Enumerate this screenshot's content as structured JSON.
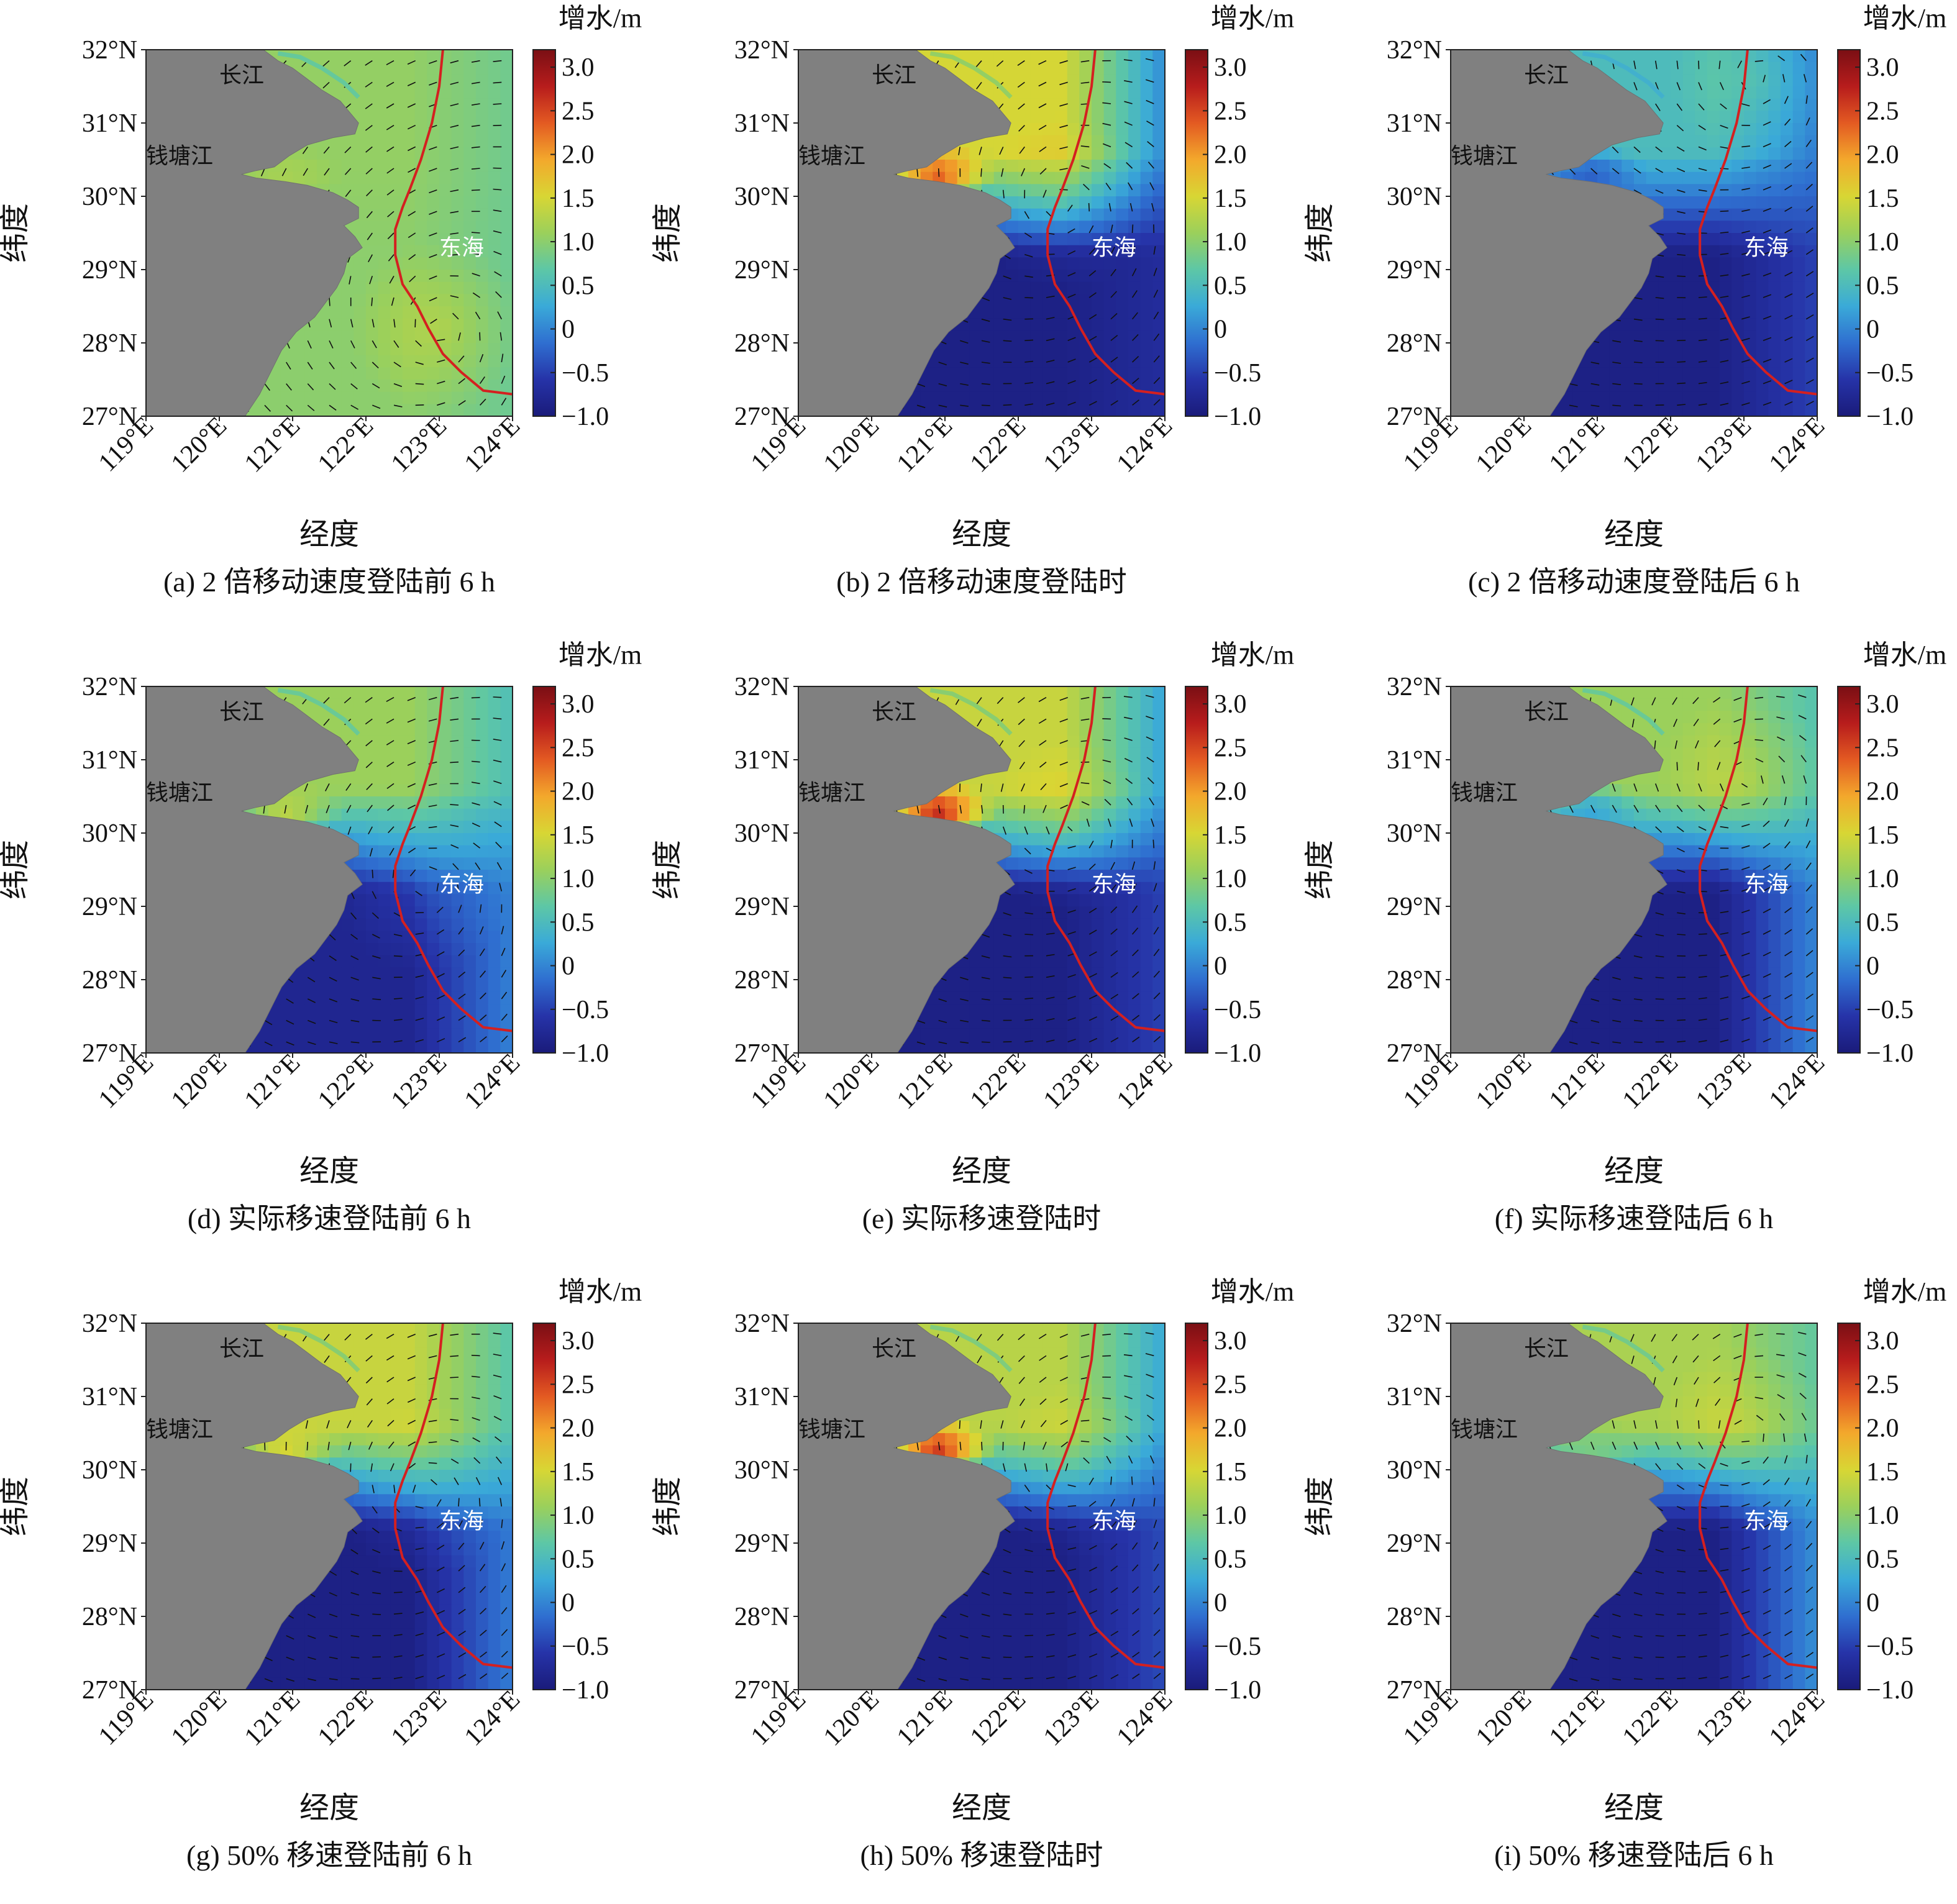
{
  "colors": {
    "land": "#808080",
    "track": "#d42020",
    "frame": "#222222",
    "arrow": "#111111",
    "colormap_jet": [
      "#1a1b7a",
      "#2633a8",
      "#2f6fd0",
      "#3aaad8",
      "#5dc7a6",
      "#9bd05b",
      "#d8d634",
      "#f3a82c",
      "#e35a22",
      "#b71c1c",
      "#7a0f14"
    ]
  },
  "axes": {
    "x_ticks": [
      "119°E",
      "120°E",
      "121°E",
      "122°E",
      "123°E",
      "124°E"
    ],
    "y_ticks": [
      "32°N",
      "31°N",
      "30°N",
      "29°N",
      "28°N",
      "27°N"
    ],
    "xlabel": "经度",
    "ylabel": "纬度",
    "lon_range": [
      119,
      124
    ],
    "lat_range": [
      27,
      32
    ]
  },
  "colorbar": {
    "title": "增水/m",
    "ticks": [
      "3.0",
      "2.5",
      "2.0",
      "1.5",
      "1.0",
      "0.5",
      "0",
      "−0.5",
      "−1.0"
    ],
    "range": [
      -1.0,
      3.2
    ]
  },
  "map_labels": {
    "changjiang": "长江",
    "qiantangjiang": "钱塘江",
    "donghai": "东海"
  },
  "panels": [
    {
      "caption": "(a) 2 倍移动速度登陆前 6 h",
      "storm_lon": 123.0,
      "storm_lat": 28.2,
      "surge_north": 1.05,
      "surge_qiantang": 1.2,
      "surge_south": 1.0,
      "surge_open": 0.7
    },
    {
      "caption": "(b) 2 倍移动速度登陆时",
      "storm_lon": 122.6,
      "storm_lat": 29.9,
      "surge_north": 1.5,
      "surge_qiantang": 2.5,
      "surge_south": -0.9,
      "surge_open": -0.6
    },
    {
      "caption": "(c) 2 倍移动速度登陆后 6 h",
      "storm_lon": 123.2,
      "storm_lat": 31.6,
      "surge_north": 0.5,
      "surge_qiantang": -0.3,
      "surge_south": -0.9,
      "surge_open": -0.3
    },
    {
      "caption": "(d) 实际移速登陆前 6 h",
      "storm_lon": 122.8,
      "storm_lat": 29.3,
      "surge_north": 1.1,
      "surge_qiantang": 1.4,
      "surge_south": -0.8,
      "surge_open": 0.3
    },
    {
      "caption": "(e) 实际移速登陆时",
      "storm_lon": 122.7,
      "storm_lat": 30.1,
      "surge_north": 1.4,
      "surge_qiantang": 2.9,
      "surge_south": -0.9,
      "surge_open": -0.3
    },
    {
      "caption": "(f) 实际移速登陆后 6 h",
      "storm_lon": 123.0,
      "storm_lat": 30.7,
      "surge_north": 1.1,
      "surge_qiantang": 0.2,
      "surge_south": -0.9,
      "surge_open": 0.4
    },
    {
      "caption": "(g) 50% 移速登陆前 6 h",
      "storm_lon": 122.8,
      "storm_lat": 29.7,
      "surge_north": 1.4,
      "surge_qiantang": 1.6,
      "surge_south": -0.9,
      "surge_open": 0.3
    },
    {
      "caption": "(h) 50% 移速登陆时",
      "storm_lon": 122.8,
      "storm_lat": 30.0,
      "surge_north": 1.3,
      "surge_qiantang": 2.8,
      "surge_south": -0.9,
      "surge_open": -0.2
    },
    {
      "caption": "(i) 50% 移速登陆后 6 h",
      "storm_lon": 123.0,
      "storm_lat": 30.5,
      "surge_north": 1.2,
      "surge_qiantang": 0.9,
      "surge_south": -0.9,
      "surge_open": 0.5
    }
  ]
}
